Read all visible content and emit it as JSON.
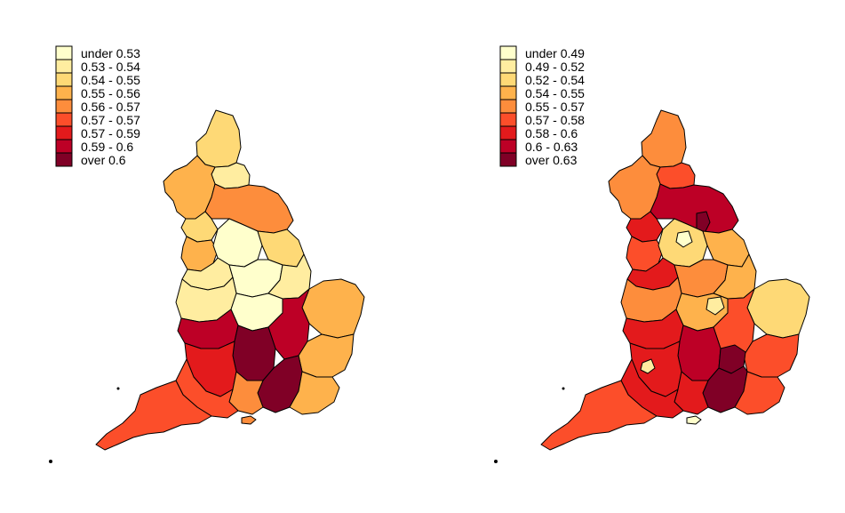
{
  "maps": [
    {
      "legend": {
        "items": [
          {
            "label": "under 0.53",
            "color": "#FFFFCC"
          },
          {
            "label": "0.53 - 0.54",
            "color": "#FFEDA0"
          },
          {
            "label": "0.54 - 0.55",
            "color": "#FED976"
          },
          {
            "label": "0.55 - 0.56",
            "color": "#FEB24C"
          },
          {
            "label": "0.56 - 0.57",
            "color": "#FD8D3C"
          },
          {
            "label": "0.57 - 0.57",
            "color": "#FC4E2A"
          },
          {
            "label": "0.57 - 0.59",
            "color": "#E31A1C"
          },
          {
            "label": "0.59 - 0.6",
            "color": "#BD0026"
          },
          {
            "label": "over 0.6",
            "color": "#800026"
          }
        ]
      }
    },
    {
      "legend": {
        "items": [
          {
            "label": "under 0.49",
            "color": "#FFFFCC"
          },
          {
            "label": "0.49 - 0.52",
            "color": "#FFEDA0"
          },
          {
            "label": "0.52 - 0.54",
            "color": "#FED976"
          },
          {
            "label": "0.54 - 0.55",
            "color": "#FEB24C"
          },
          {
            "label": "0.55 - 0.57",
            "color": "#FD8D3C"
          },
          {
            "label": "0.57 - 0.58",
            "color": "#FC4E2A"
          },
          {
            "label": "0.58 - 0.6",
            "color": "#E31A1C"
          },
          {
            "label": "0.6 - 0.63",
            "color": "#BD0026"
          },
          {
            "label": "over 0.63",
            "color": "#800026"
          }
        ]
      }
    }
  ]
}
